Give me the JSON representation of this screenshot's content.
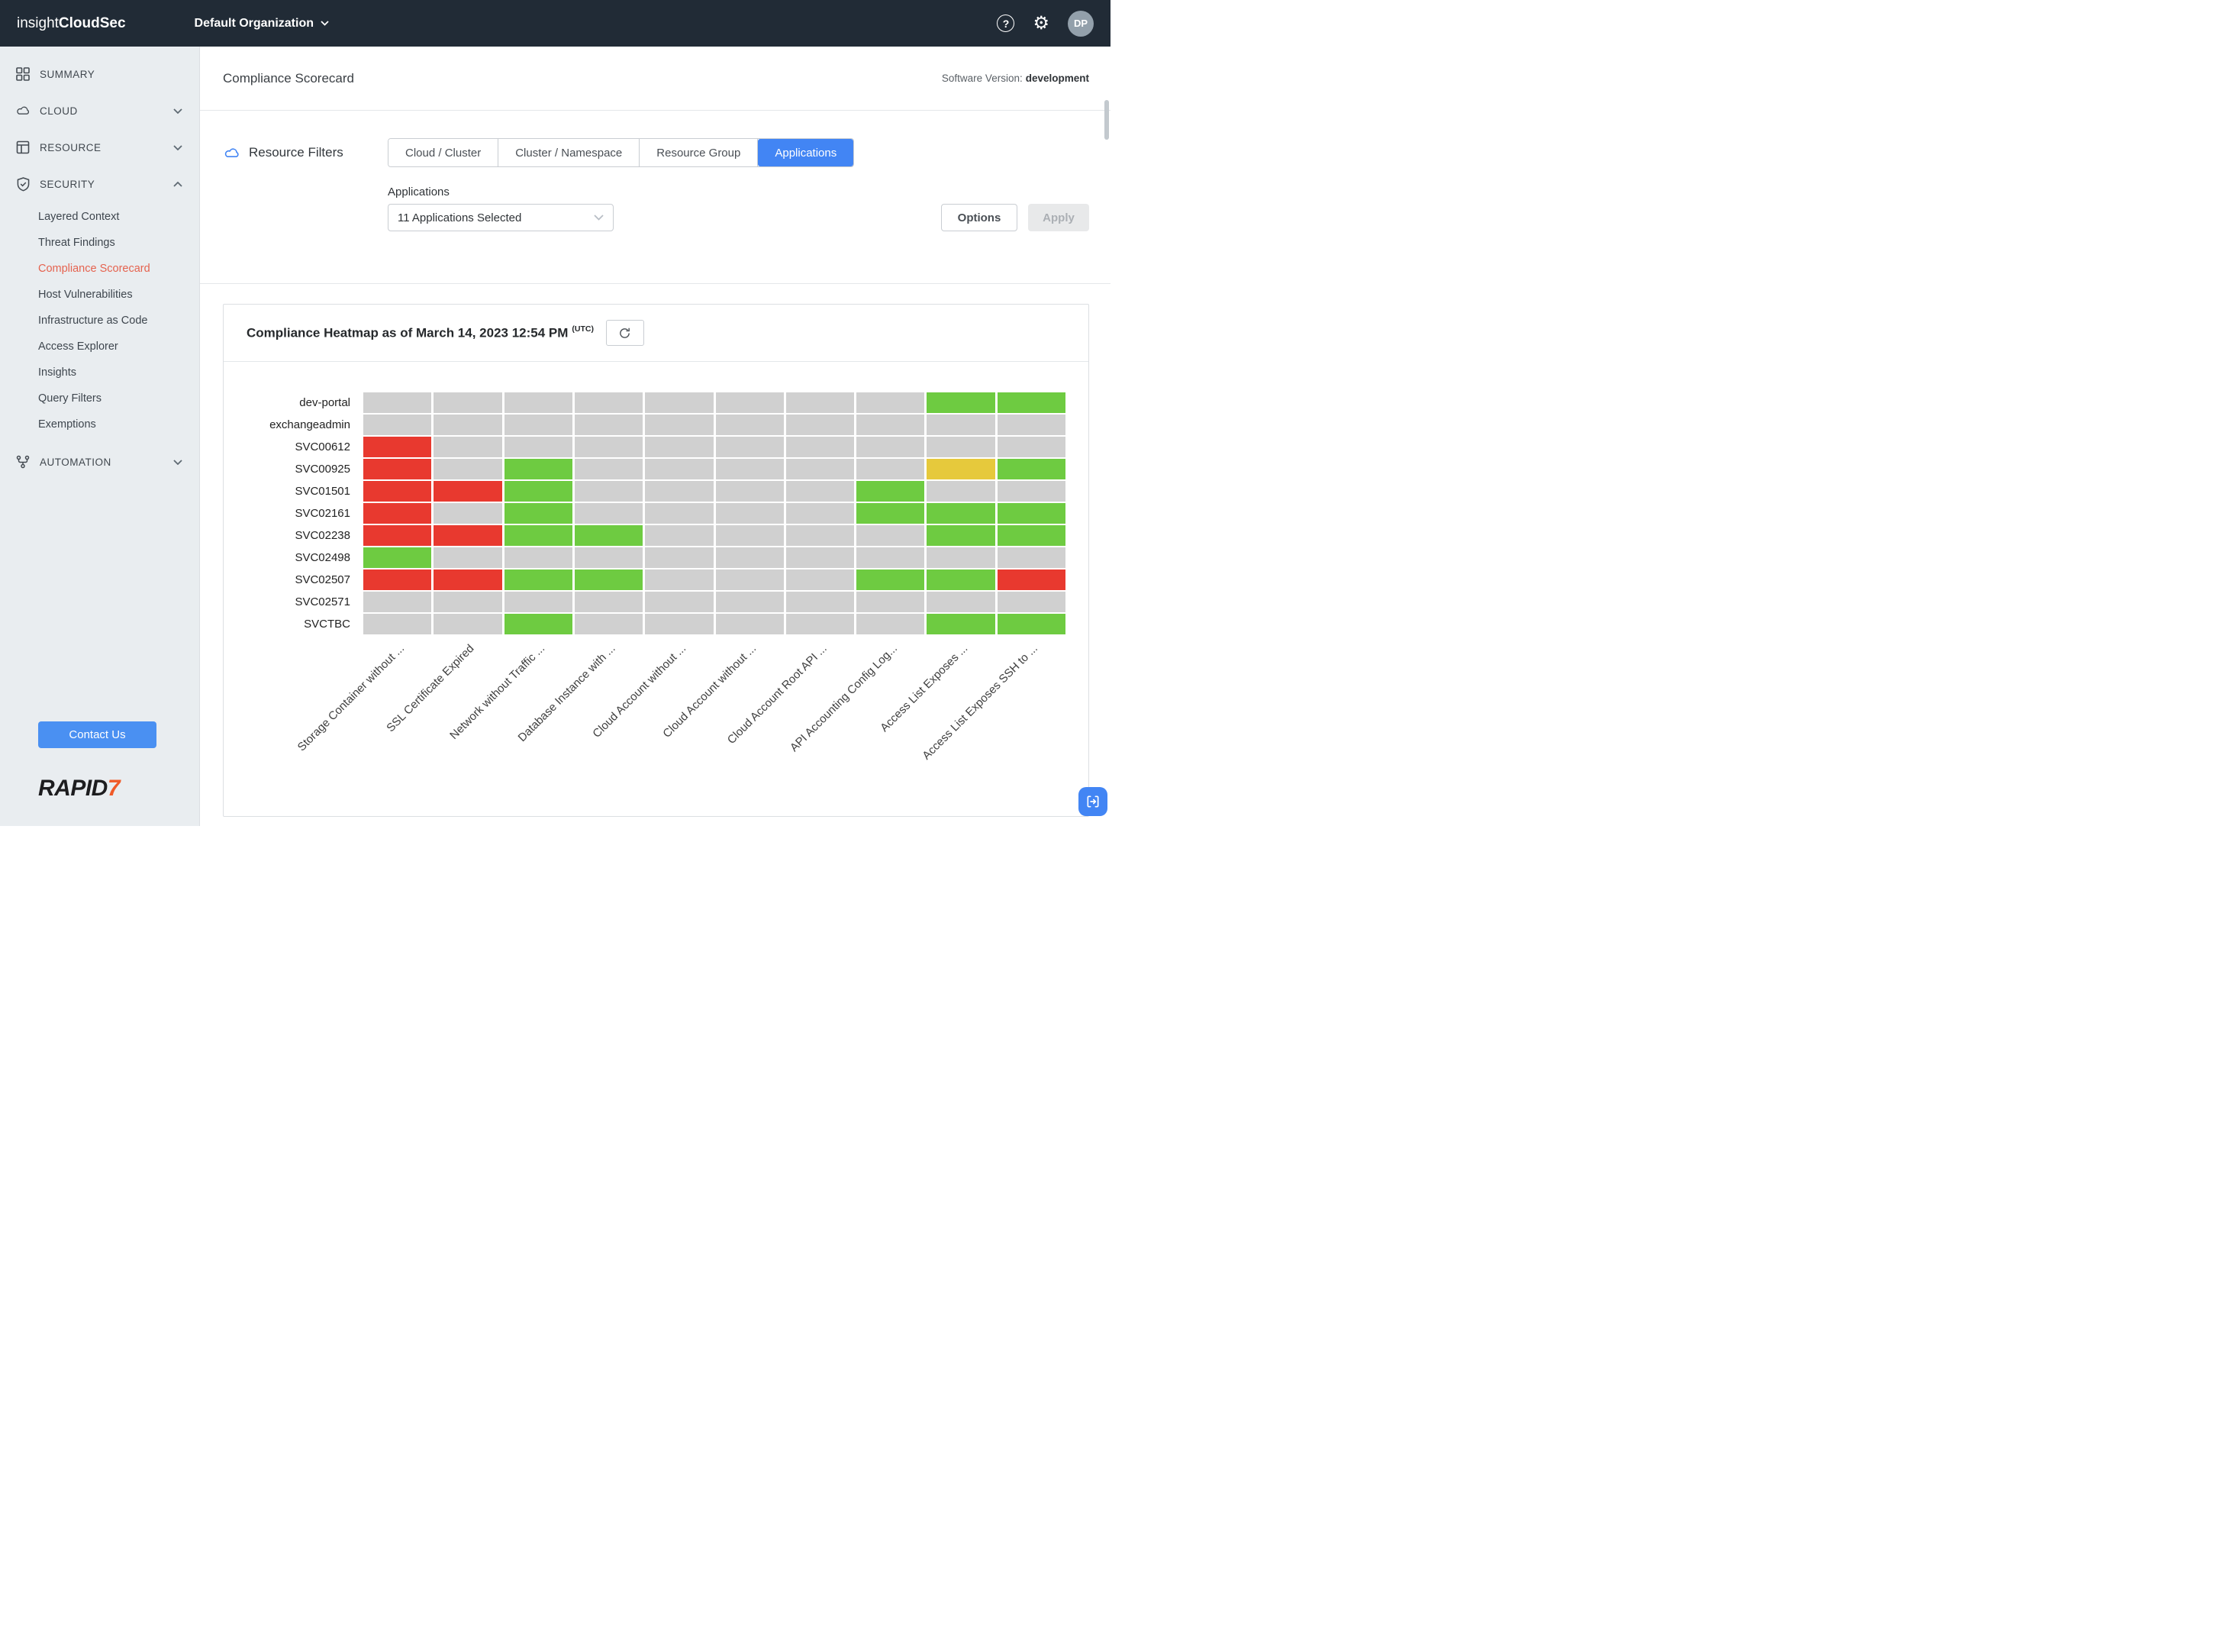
{
  "topbar": {
    "brand_prefix": "insight",
    "brand_suffix": "CloudSec",
    "org_selector": "Default Organization",
    "avatar_initials": "DP"
  },
  "sidebar": {
    "summary": "SUMMARY",
    "cloud": "CLOUD",
    "resource": "RESOURCE",
    "security": "SECURITY",
    "automation": "AUTOMATION",
    "security_children": [
      "Layered Context",
      "Threat Findings",
      "Compliance Scorecard",
      "Host Vulnerabilities",
      "Infrastructure as Code",
      "Access Explorer",
      "Insights",
      "Query Filters",
      "Exemptions"
    ],
    "active_child": "Compliance Scorecard",
    "contact_button": "Contact Us",
    "logo_rapid": "RAPID",
    "logo_seven": "7"
  },
  "header": {
    "title": "Compliance Scorecard",
    "software_version_label": "Software Version:",
    "software_version_value": "development"
  },
  "filters": {
    "section_label": "Resource Filters",
    "tabs": [
      "Cloud / Cluster",
      "Cluster / Namespace",
      "Resource Group",
      "Applications"
    ],
    "active_tab": "Applications",
    "applications_label": "Applications",
    "applications_value": "11 Applications Selected",
    "options_button": "Options",
    "apply_button": "Apply"
  },
  "heatmap_card": {
    "title": "Compliance Heatmap as of March 14, 2023 12:54 PM",
    "utc_suffix": "(UTC)"
  },
  "chart_data": {
    "type": "heatmap",
    "title": "Compliance Heatmap as of March 14, 2023 12:54 PM (UTC)",
    "rows": [
      "dev-portal",
      "exchangeadmin",
      "SVC00612",
      "SVC00925",
      "SVC01501",
      "SVC02161",
      "SVC02238",
      "SVC02498",
      "SVC02507",
      "SVC02571",
      "SVCTBC"
    ],
    "columns": [
      "Storage Container without ...",
      "SSL Certificate Expired",
      "Network without Traffic ...",
      "Database Instance with ...",
      "Cloud Account without ...",
      "Cloud Account without ...",
      "Cloud Account Root API ...",
      "API Accounting Config Log...",
      "Access List Exposes ...",
      "Access List Exposes SSH to ..."
    ],
    "cell_colors": {
      "-": "#d0d0d0",
      "G": "#6ecb41",
      "R": "#e8392f",
      "Y": "#e6c93c"
    },
    "cell_meaning": {
      "-": "no data",
      "G": "pass",
      "R": "fail",
      "Y": "warning"
    },
    "cells": [
      [
        "-",
        "-",
        "-",
        "-",
        "-",
        "-",
        "-",
        "-",
        "G",
        "G"
      ],
      [
        "-",
        "-",
        "-",
        "-",
        "-",
        "-",
        "-",
        "-",
        "-",
        "-"
      ],
      [
        "R",
        "-",
        "-",
        "-",
        "-",
        "-",
        "-",
        "-",
        "-",
        "-"
      ],
      [
        "R",
        "-",
        "G",
        "-",
        "-",
        "-",
        "-",
        "-",
        "Y",
        "G"
      ],
      [
        "R",
        "R",
        "G",
        "-",
        "-",
        "-",
        "-",
        "G",
        "-",
        "-"
      ],
      [
        "R",
        "-",
        "G",
        "-",
        "-",
        "-",
        "-",
        "G",
        "G",
        "G"
      ],
      [
        "R",
        "R",
        "G",
        "G",
        "-",
        "-",
        "-",
        "-",
        "G",
        "G"
      ],
      [
        "G",
        "-",
        "-",
        "-",
        "-",
        "-",
        "-",
        "-",
        "-",
        "-"
      ],
      [
        "R",
        "R",
        "G",
        "G",
        "-",
        "-",
        "-",
        "G",
        "G",
        "R"
      ],
      [
        "-",
        "-",
        "-",
        "-",
        "-",
        "-",
        "-",
        "-",
        "-",
        "-"
      ],
      [
        "-",
        "-",
        "G",
        "-",
        "-",
        "-",
        "-",
        "-",
        "G",
        "G"
      ]
    ]
  }
}
